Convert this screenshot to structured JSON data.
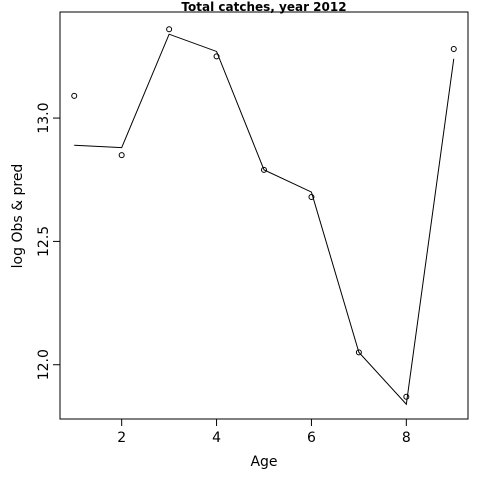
{
  "chart_data": {
    "type": "line",
    "title": "Total catches, year 2012",
    "xlabel": "Age",
    "ylabel": "log Obs & pred",
    "xlim": [
      0.7,
      9.3
    ],
    "ylim": [
      11.78,
      13.43
    ],
    "x_ticks": [
      2,
      4,
      6,
      8
    ],
    "y_ticks": [
      12.0,
      12.5,
      13.0
    ],
    "x_tick_labels": [
      "2",
      "4",
      "6",
      "8"
    ],
    "y_tick_labels": [
      "12.0",
      "12.5",
      "13.0"
    ],
    "grid": false,
    "legend": "none",
    "series": [
      {
        "style": "points",
        "x": [
          1,
          2,
          3,
          4,
          5,
          6,
          7,
          8,
          9
        ],
        "values": [
          13.09,
          12.85,
          13.36,
          13.25,
          12.79,
          12.68,
          12.05,
          11.87,
          13.28
        ]
      },
      {
        "style": "line",
        "x": [
          1,
          2,
          3,
          4,
          5,
          6,
          7,
          8,
          9
        ],
        "values": [
          12.89,
          12.88,
          13.34,
          13.27,
          12.79,
          12.7,
          12.05,
          11.84,
          13.24
        ]
      }
    ]
  }
}
